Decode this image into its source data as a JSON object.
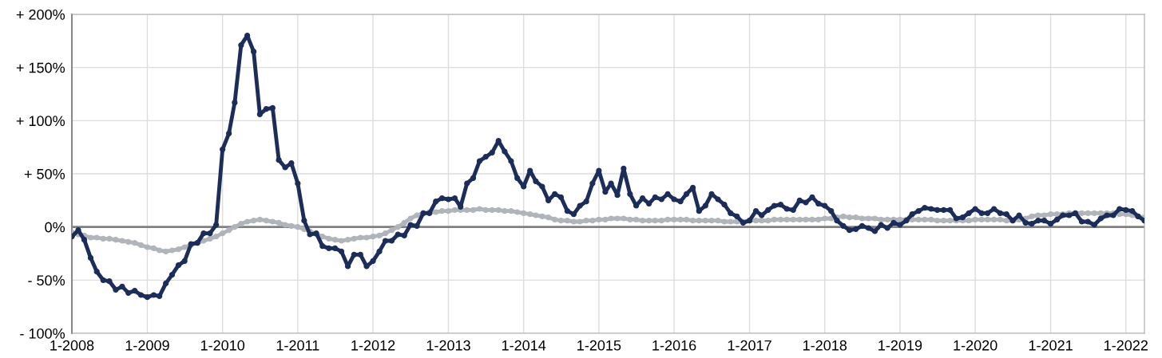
{
  "chart_data": {
    "type": "line",
    "x": [
      "2008-01",
      "2008-02",
      "2008-03",
      "2008-04",
      "2008-05",
      "2008-06",
      "2008-07",
      "2008-08",
      "2008-09",
      "2008-10",
      "2008-11",
      "2008-12",
      "2009-01",
      "2009-02",
      "2009-03",
      "2009-04",
      "2009-05",
      "2009-06",
      "2009-07",
      "2009-08",
      "2009-09",
      "2009-10",
      "2009-11",
      "2009-12",
      "2010-01",
      "2010-02",
      "2010-03",
      "2010-04",
      "2010-05",
      "2010-06",
      "2010-07",
      "2010-08",
      "2010-09",
      "2010-10",
      "2010-11",
      "2010-12",
      "2011-01",
      "2011-02",
      "2011-03",
      "2011-04",
      "2011-05",
      "2011-06",
      "2011-07",
      "2011-08",
      "2011-09",
      "2011-10",
      "2011-11",
      "2011-12",
      "2012-01",
      "2012-02",
      "2012-03",
      "2012-04",
      "2012-05",
      "2012-06",
      "2012-07",
      "2012-08",
      "2012-09",
      "2012-10",
      "2012-11",
      "2012-12",
      "2013-01",
      "2013-02",
      "2013-03",
      "2013-04",
      "2013-05",
      "2013-06",
      "2013-07",
      "2013-08",
      "2013-09",
      "2013-10",
      "2013-11",
      "2013-12",
      "2014-01",
      "2014-02",
      "2014-03",
      "2014-04",
      "2014-05",
      "2014-06",
      "2014-07",
      "2014-08",
      "2014-09",
      "2014-10",
      "2014-11",
      "2014-12",
      "2015-01",
      "2015-02",
      "2015-03",
      "2015-04",
      "2015-05",
      "2015-06",
      "2015-07",
      "2015-08",
      "2015-09",
      "2015-10",
      "2015-11",
      "2015-12",
      "2016-01",
      "2016-02",
      "2016-03",
      "2016-04",
      "2016-05",
      "2016-06",
      "2016-07",
      "2016-08",
      "2016-09",
      "2016-10",
      "2016-11",
      "2016-12",
      "2017-01",
      "2017-02",
      "2017-03",
      "2017-04",
      "2017-05",
      "2017-06",
      "2017-07",
      "2017-08",
      "2017-09",
      "2017-10",
      "2017-11",
      "2017-12",
      "2018-01",
      "2018-02",
      "2018-03",
      "2018-04",
      "2018-05",
      "2018-06",
      "2018-07",
      "2018-08",
      "2018-09",
      "2018-10",
      "2018-11",
      "2018-12",
      "2019-01",
      "2019-02",
      "2019-03",
      "2019-04",
      "2019-05",
      "2019-06",
      "2019-07",
      "2019-08",
      "2019-09",
      "2019-10",
      "2019-11",
      "2019-12",
      "2020-01",
      "2020-02",
      "2020-03",
      "2020-04",
      "2020-05",
      "2020-06",
      "2020-07",
      "2020-08",
      "2020-09",
      "2020-10",
      "2020-11",
      "2020-12",
      "2021-01",
      "2021-02",
      "2021-03",
      "2021-04",
      "2021-05",
      "2021-06",
      "2021-07",
      "2021-08",
      "2021-09",
      "2021-10",
      "2021-11",
      "2021-12",
      "2022-01",
      "2022-02",
      "2022-03",
      "2022-04"
    ],
    "series": [
      {
        "color": "#1c2d5a",
        "values": [
          -9,
          -3,
          -12,
          -29,
          -42,
          -50,
          -51,
          -59,
          -56,
          -62,
          -60,
          -64,
          -66,
          -64,
          -65,
          -53,
          -45,
          -36,
          -32,
          -16,
          -15,
          -6,
          -6,
          2,
          73,
          88,
          117,
          171,
          180,
          165,
          106,
          111,
          112,
          63,
          56,
          60,
          41,
          6,
          -7,
          -6,
          -18,
          -20,
          -20,
          -23,
          -37,
          -26,
          -26,
          -37,
          -32,
          -23,
          -13,
          -13,
          -7,
          -8,
          2,
          1,
          13,
          13,
          24,
          27,
          26,
          27,
          19,
          41,
          46,
          62,
          66,
          70,
          81,
          71,
          62,
          46,
          38,
          53,
          43,
          38,
          25,
          31,
          28,
          15,
          12,
          20,
          24,
          41,
          53,
          33,
          41,
          30,
          55,
          31,
          20,
          27,
          22,
          28,
          26,
          31,
          26,
          24,
          31,
          37,
          15,
          20,
          31,
          26,
          21,
          13,
          10,
          4,
          6,
          15,
          11,
          16,
          20,
          21,
          17,
          16,
          25,
          23,
          28,
          22,
          20,
          15,
          6,
          1,
          -3,
          -2,
          1,
          -1,
          -4,
          2,
          -1,
          4,
          2,
          6,
          12,
          15,
          18,
          17,
          16,
          16,
          16,
          8,
          9,
          13,
          17,
          13,
          13,
          17,
          13,
          12,
          6,
          11,
          4,
          3,
          6,
          6,
          3,
          7,
          11,
          11,
          13,
          5,
          5,
          2,
          8,
          11,
          11,
          17,
          16,
          15,
          10,
          6
        ]
      },
      {
        "color": "#b0b5bb",
        "values": [
          -5,
          -7,
          -8,
          -10,
          -10,
          -11,
          -11,
          -12,
          -13,
          -14,
          -15,
          -17,
          -19,
          -20,
          -22,
          -23,
          -22,
          -21,
          -19,
          -17,
          -15,
          -13,
          -11,
          -9,
          -6,
          -3,
          0,
          3,
          5,
          6,
          7,
          6,
          5,
          4,
          2,
          1,
          0,
          -2,
          -4,
          -7,
          -9,
          -11,
          -12,
          -13,
          -12,
          -11,
          -10,
          -10,
          -9,
          -8,
          -6,
          -3,
          0,
          4,
          8,
          11,
          13,
          14,
          14,
          15,
          15,
          16,
          16,
          16,
          16,
          17,
          16,
          16,
          16,
          15,
          15,
          14,
          13,
          12,
          11,
          10,
          9,
          7,
          6,
          6,
          5,
          5,
          6,
          6,
          7,
          7,
          8,
          8,
          8,
          7,
          7,
          6,
          6,
          6,
          6,
          7,
          7,
          7,
          7,
          6,
          6,
          6,
          6,
          6,
          5,
          5,
          5,
          5,
          6,
          6,
          6,
          6,
          7,
          7,
          7,
          7,
          7,
          7,
          7,
          7,
          8,
          8,
          9,
          10,
          9,
          9,
          8,
          8,
          8,
          7,
          7,
          7,
          7,
          7,
          7,
          7,
          7,
          7,
          6,
          6,
          6,
          6,
          6,
          6,
          7,
          7,
          7,
          7,
          7,
          6,
          6,
          7,
          8,
          10,
          11,
          11,
          12,
          12,
          12,
          13,
          13,
          13,
          13,
          13,
          13,
          13,
          13,
          12,
          12,
          11,
          10,
          9
        ]
      }
    ],
    "xlim": [
      "2008-01",
      "2022-04"
    ],
    "xticks": [
      {
        "value": "2008-01",
        "label": "1-2008"
      },
      {
        "value": "2009-01",
        "label": "1-2009"
      },
      {
        "value": "2010-01",
        "label": "1-2010"
      },
      {
        "value": "2011-01",
        "label": "1-2011"
      },
      {
        "value": "2012-01",
        "label": "1-2012"
      },
      {
        "value": "2013-01",
        "label": "1-2013"
      },
      {
        "value": "2014-01",
        "label": "1-2014"
      },
      {
        "value": "2015-01",
        "label": "1-2015"
      },
      {
        "value": "2016-01",
        "label": "1-2016"
      },
      {
        "value": "2017-01",
        "label": "1-2017"
      },
      {
        "value": "2018-01",
        "label": "1-2018"
      },
      {
        "value": "2019-01",
        "label": "1-2019"
      },
      {
        "value": "2020-01",
        "label": "1-2020"
      },
      {
        "value": "2021-01",
        "label": "1-2021"
      },
      {
        "value": "2022-01",
        "label": "1-2022"
      }
    ],
    "ylim": [
      -100,
      200
    ],
    "yticks": [
      {
        "value": -100,
        "label": "- 100%"
      },
      {
        "value": -50,
        "label": "- 50%"
      },
      {
        "value": 0,
        "label": "0%"
      },
      {
        "value": 50,
        "label": "+ 50%"
      },
      {
        "value": 100,
        "label": "+ 100%"
      },
      {
        "value": 150,
        "label": "+ 150%"
      },
      {
        "value": 200,
        "label": "+ 200%"
      }
    ],
    "ref_lines": [
      {
        "axis": "y",
        "value": 0,
        "color": "#808080"
      }
    ],
    "grid": true,
    "marker": "circle",
    "line_style": "solid"
  }
}
